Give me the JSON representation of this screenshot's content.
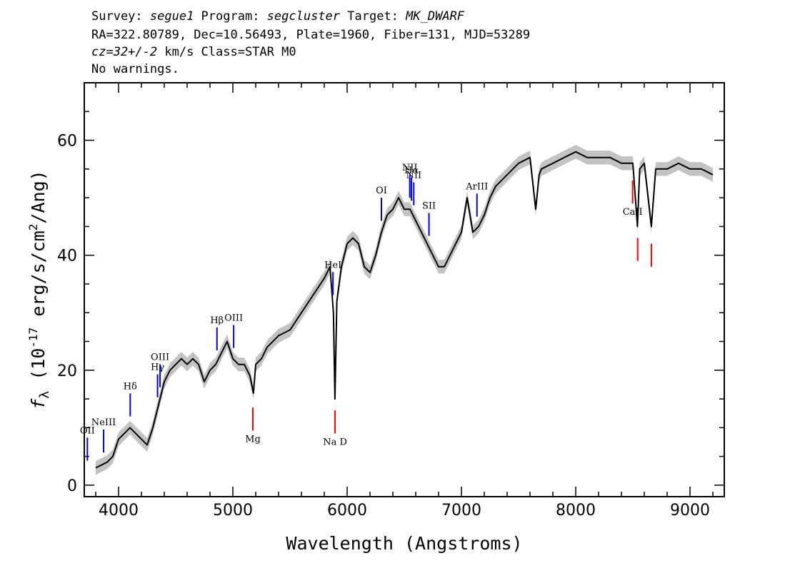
{
  "header": {
    "line1": [
      {
        "text": "Survey: ",
        "italic": false
      },
      {
        "text": "segue1",
        "italic": true
      },
      {
        "text": " Program: ",
        "italic": false
      },
      {
        "text": "segcluster",
        "italic": true
      },
      {
        "text": " Target: ",
        "italic": false
      },
      {
        "text": "MK_DWARF",
        "italic": true
      }
    ],
    "line2": "RA=322.80789, Dec=10.56493, Plate=1960, Fiber=131, MJD=53289",
    "line3": [
      {
        "text": "cz=32+/-2",
        "italic": true
      },
      {
        "text": " km/s Class=STAR M0",
        "italic": false
      }
    ],
    "line4": "No warnings."
  },
  "chart_data": {
    "type": "line",
    "xlabel": "Wavelength (Angstroms)",
    "ylabel": "f_λ (10^-17 erg/s/cm^2/Ang)",
    "xlim": [
      3700,
      9300
    ],
    "ylim": [
      -2,
      70
    ],
    "x_ticks": [
      4000,
      5000,
      6000,
      7000,
      8000,
      9000
    ],
    "y_ticks": [
      0,
      20,
      40,
      60
    ],
    "grid": false,
    "colors": {
      "spectrum": "#000000",
      "error": "#b4b4b4",
      "emission": "#0000ff",
      "absorption": "#ff0000"
    },
    "series": [
      {
        "x": [
          3800,
          3850,
          3900,
          3950,
          4000,
          4050,
          4100,
          4150,
          4200,
          4250,
          4300,
          4350,
          4400,
          4450,
          4500,
          4550,
          4600,
          4650,
          4700,
          4750,
          4800,
          4850,
          4900,
          4950,
          5000,
          5050,
          5100,
          5150,
          5180,
          5200,
          5250,
          5300,
          5400,
          5500,
          5600,
          5700,
          5800,
          5850,
          5880,
          5893,
          5910,
          5950,
          6000,
          6050,
          6100,
          6150,
          6200,
          6250,
          6300,
          6350,
          6400,
          6450,
          6500,
          6550,
          6600,
          6650,
          6700,
          6750,
          6800,
          6850,
          6900,
          6950,
          7000,
          7050,
          7100,
          7150,
          7200,
          7250,
          7300,
          7400,
          7500,
          7600,
          7650,
          7680,
          7700,
          7800,
          7900,
          8000,
          8100,
          8200,
          8300,
          8400,
          8500,
          8540,
          8560,
          8600,
          8662,
          8700,
          8800,
          8900,
          9000,
          9100,
          9200
        ],
        "y": [
          3,
          3.5,
          4,
          5,
          8,
          9,
          10,
          9,
          8,
          7,
          10,
          14,
          18,
          20,
          21,
          22,
          21,
          22,
          21,
          18,
          20,
          21,
          23,
          25,
          22,
          21,
          21,
          19,
          16,
          21,
          22,
          24,
          26,
          27,
          30,
          33,
          36,
          38,
          30,
          15,
          32,
          38,
          42,
          43,
          42,
          38,
          37,
          40,
          44,
          47,
          48,
          50,
          48,
          48,
          46,
          44,
          42,
          40,
          38,
          38,
          40,
          42,
          44,
          50,
          44,
          45,
          47,
          50,
          52,
          54,
          56,
          57,
          48,
          54,
          55,
          56,
          57,
          58,
          57,
          57,
          57,
          56,
          56,
          45,
          55,
          56,
          45,
          55,
          55,
          56,
          55,
          55,
          54
        ]
      }
    ],
    "emission_lines": [
      {
        "label": "OII",
        "wavelength": 3727
      },
      {
        "label": "NeIII",
        "wavelength": 3869
      },
      {
        "label": "Hδ",
        "wavelength": 4102
      },
      {
        "label": "Hγ",
        "wavelength": 4341
      },
      {
        "label": "OIII",
        "wavelength": 4363
      },
      {
        "label": "Hβ",
        "wavelength": 4861
      },
      {
        "label": "OIII",
        "wavelength": 5007
      },
      {
        "label": "HeI",
        "wavelength": 5876
      },
      {
        "label": "OI",
        "wavelength": 6300
      },
      {
        "label": "NII",
        "wavelength": 6548
      },
      {
        "label": "Hα",
        "wavelength": 6563
      },
      {
        "label": "NII",
        "wavelength": 6583
      },
      {
        "label": "SII",
        "wavelength": 6716
      },
      {
        "label": "ArIII",
        "wavelength": 7136
      }
    ],
    "absorption_lines": [
      {
        "label": "Mg",
        "wavelength": 5175
      },
      {
        "label": "Na D",
        "wavelength": 5894
      },
      {
        "label": "CaII",
        "wavelength": 8498
      },
      {
        "label": "",
        "wavelength": 8542
      },
      {
        "label": "",
        "wavelength": 8662
      }
    ]
  }
}
